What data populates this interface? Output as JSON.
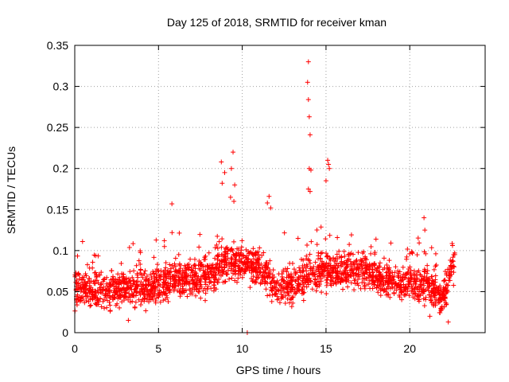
{
  "chart_data": {
    "type": "scatter",
    "title": "Day 125 of 2018, SRMTID for receiver kman",
    "xlabel": "GPS time / hours",
    "ylabel": "SRMTID / TECUs",
    "xlim": [
      0,
      24.5
    ],
    "ylim": [
      0,
      0.35
    ],
    "xticks": [
      0,
      5,
      10,
      15,
      20
    ],
    "yticks": [
      0,
      0.05,
      0.1,
      0.15,
      0.2,
      0.25,
      0.3,
      0.35
    ],
    "xtick_labels": [
      "0",
      "5",
      "10",
      "15",
      "20"
    ],
    "ytick_labels": [
      "0",
      "0.05",
      "0.1",
      "0.15",
      "0.2",
      "0.25",
      "0.3",
      "0.35"
    ],
    "grid": true,
    "marker": "+",
    "series_color": "#ff0000",
    "series": [
      {
        "name": "SRMTID",
        "x_start": 0.0,
        "x_end": 22.7,
        "baseline": [
          [
            0,
            0.055
          ],
          [
            1,
            0.05
          ],
          [
            2,
            0.05
          ],
          [
            3,
            0.055
          ],
          [
            4,
            0.055
          ],
          [
            5,
            0.058
          ],
          [
            6,
            0.065
          ],
          [
            7,
            0.065
          ],
          [
            8,
            0.07
          ],
          [
            9,
            0.085
          ],
          [
            10,
            0.085
          ],
          [
            11,
            0.08
          ],
          [
            12,
            0.055
          ],
          [
            13,
            0.055
          ],
          [
            14,
            0.07
          ],
          [
            15,
            0.075
          ],
          [
            16,
            0.075
          ],
          [
            17,
            0.075
          ],
          [
            18,
            0.07
          ],
          [
            19,
            0.06
          ],
          [
            20,
            0.06
          ],
          [
            21,
            0.06
          ],
          [
            22,
            0.04
          ],
          [
            22.7,
            0.09
          ]
        ],
        "spread": 0.02,
        "n_points": 2200,
        "outliers": [
          [
            13.95,
            0.33
          ],
          [
            13.9,
            0.305
          ],
          [
            13.95,
            0.284
          ],
          [
            14.0,
            0.263
          ],
          [
            14.05,
            0.241
          ],
          [
            14.0,
            0.2
          ],
          [
            14.1,
            0.198
          ],
          [
            13.95,
            0.175
          ],
          [
            14.05,
            0.172
          ],
          [
            15.1,
            0.21
          ],
          [
            15.15,
            0.205
          ],
          [
            15.2,
            0.2
          ],
          [
            15.0,
            0.185
          ],
          [
            9.45,
            0.22
          ],
          [
            8.75,
            0.208
          ],
          [
            9.35,
            0.2
          ],
          [
            8.95,
            0.195
          ],
          [
            9.55,
            0.18
          ],
          [
            8.8,
            0.182
          ],
          [
            9.3,
            0.165
          ],
          [
            9.5,
            0.16
          ],
          [
            11.6,
            0.166
          ],
          [
            11.5,
            0.158
          ],
          [
            11.7,
            0.152
          ],
          [
            5.8,
            0.157
          ],
          [
            20.85,
            0.14
          ],
          [
            20.9,
            0.125
          ],
          [
            3.2,
            0.015
          ],
          [
            21.2,
            0.02
          ],
          [
            22.3,
            0.013
          ],
          [
            10.3,
            0.0
          ]
        ]
      }
    ]
  }
}
